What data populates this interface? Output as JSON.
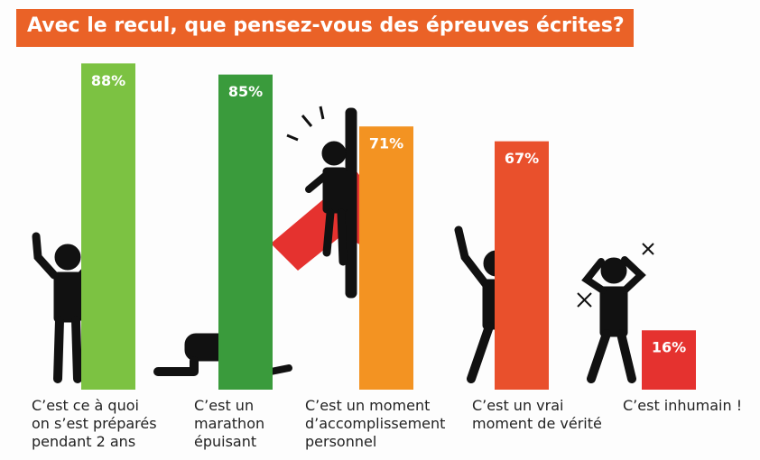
{
  "title": "Avec le recul, que pensez-vous des épreuves écrites?",
  "chart_data": {
    "type": "bar",
    "categories": [
      "C’est ce à quoi\non s’est préparés\npendant 2 ans",
      "C’est un\nmarathon\népuisant",
      "C’est un moment\nd’accomplissement\npersonnel",
      "C’est un vrai\nmoment de vérité",
      "C’est inhumain !"
    ],
    "values": [
      88,
      85,
      71,
      67,
      16
    ],
    "value_labels": [
      "88%",
      "85%",
      "71%",
      "67%",
      "16%"
    ],
    "colors": [
      "#7cc242",
      "#3a9b3c",
      "#f39322",
      "#e9502c",
      "#e5322f"
    ]
  }
}
